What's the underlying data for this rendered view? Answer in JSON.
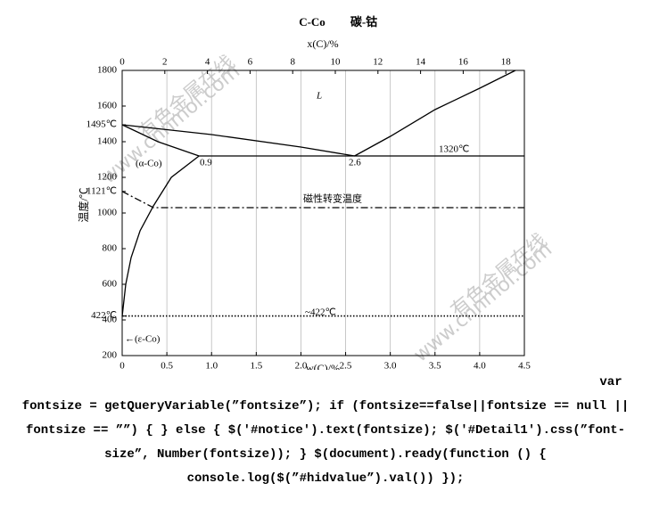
{
  "chart_data": {
    "type": "line",
    "title": "C-Co",
    "subtitle": "碳-钴",
    "x_label": "w(C)/%",
    "x2_label": "x(C)/%",
    "y_label": "温度/℃",
    "xlim": [
      0,
      4.5
    ],
    "xticks": [
      0,
      0.5,
      {
        "value": 1,
        "label": "1.0"
      },
      1.5,
      {
        "value": 2,
        "label": "2.0"
      },
      2.5,
      {
        "value": 3,
        "label": "3.0"
      },
      3.5,
      {
        "value": 4,
        "label": "4.0"
      },
      4.5
    ],
    "x2lim": [
      0,
      18.87
    ],
    "x2ticks": [
      0,
      2,
      4,
      6,
      8,
      10,
      12,
      14,
      16,
      18
    ],
    "ylim": [
      200,
      1800
    ],
    "yticks": [
      200,
      400,
      {
        "value": 422,
        "label": "422℃"
      },
      600,
      800,
      1000,
      {
        "value": 1121,
        "label": "1121℃"
      },
      1200,
      1400,
      {
        "value": 1495,
        "label": "1495℃"
      },
      1600,
      1800
    ],
    "grid": true,
    "color": "#000000",
    "series": [
      {
        "dash": "solid",
        "x": [
          0,
          1,
          2,
          2.6
        ],
        "values": [
          1495,
          1440,
          1370,
          1320
        ]
      },
      {
        "dash": "solid",
        "x": [
          2.6,
          3,
          3.5,
          4,
          4.4
        ],
        "values": [
          1320,
          1430,
          1580,
          1700,
          1800
        ]
      },
      {
        "dash": "solid",
        "x": [
          0,
          0.4,
          0.86
        ],
        "values": [
          1495,
          1400,
          1320
        ]
      },
      {
        "dash": "solid",
        "x": [
          0.86,
          4.5
        ],
        "values": [
          1320,
          1320
        ]
      },
      {
        "dash": "solid",
        "x": [
          0.86,
          0.55,
          0.35,
          0.2,
          0.1,
          0.04,
          0
        ],
        "values": [
          1320,
          1200,
          1040,
          900,
          750,
          600,
          420
        ]
      },
      {
        "dash": "dashdot",
        "x": [
          0,
          0.35,
          4.5
        ],
        "values": [
          1121,
          1030,
          1030
        ]
      },
      {
        "dash": "dotted",
        "x": [
          0,
          4.5
        ],
        "values": [
          422,
          422
        ]
      }
    ],
    "annotations": [
      "L",
      "(α-Co)",
      "0.9",
      "2.6",
      "1320℃",
      "磁性转变温度",
      "~422℃",
      "←(ε-Co)",
      "Co",
      "C"
    ],
    "watermark": [
      "有色金属在线",
      "www.cnnmol.com"
    ]
  },
  "page_text": "var fontsize = getQueryVariable(”fontsize”); if (fontsize==false||fontsize == null || fontsize == ””) { } else { $('#notice').text(fontsize); $('#Detail1').css(”font-size”, Number(fontsize)); } $(document).ready(function () { console.log($(”#hidvalue”).val()) });"
}
